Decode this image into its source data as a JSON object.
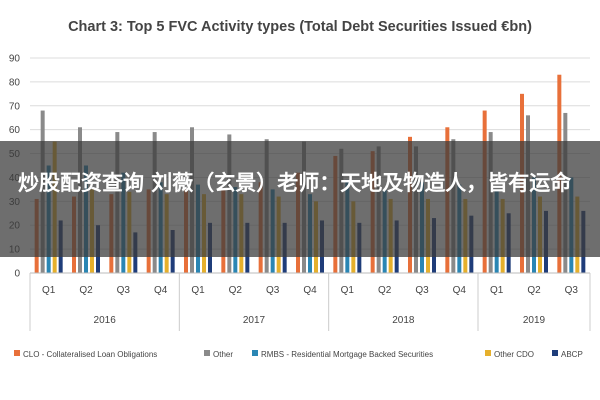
{
  "overlay": {
    "text": "炒股配资查询 刘薇（玄景）老师：天地及物造人，皆有运命"
  },
  "colors": {
    "clo": "#e8703a",
    "other": "#8a8a8a",
    "rmbs": "#2a86b4",
    "other_cdo": "#e6b02c",
    "abcp": "#1f3d7a",
    "grid": "#dcdcdc",
    "text": "#444444"
  },
  "chart_data": {
    "type": "bar",
    "title": "Chart 3: Top 5 FVC Activity types (Total Debt Securities Issued €bn)",
    "xlabel": "",
    "ylabel": "",
    "ylim": [
      0,
      90
    ],
    "yticks": [
      0,
      10,
      20,
      30,
      40,
      50,
      60,
      70,
      80,
      90
    ],
    "grid": true,
    "legend_position": "bottom",
    "categories": [
      "Q1",
      "Q2",
      "Q3",
      "Q4",
      "Q1",
      "Q2",
      "Q3",
      "Q4",
      "Q1",
      "Q2",
      "Q3",
      "Q4",
      "Q1",
      "Q2",
      "Q3"
    ],
    "groups": [
      {
        "label": "2016",
        "count": 4
      },
      {
        "label": "2017",
        "count": 4
      },
      {
        "label": "2018",
        "count": 4
      },
      {
        "label": "2019",
        "count": 3
      }
    ],
    "series": [
      {
        "name": "CLO - Collateralised Loan Obligations",
        "color_key": "clo",
        "values": [
          31,
          32,
          33,
          35,
          35,
          35,
          38,
          42,
          49,
          51,
          57,
          61,
          68,
          75,
          83
        ]
      },
      {
        "name": "Other",
        "color_key": "other",
        "values": [
          68,
          61,
          59,
          59,
          61,
          58,
          56,
          55,
          52,
          53,
          53,
          56,
          59,
          66,
          67
        ]
      },
      {
        "name": "RMBS - Residential Mortgage Backed Securities",
        "color_key": "rmbs",
        "values": [
          45,
          45,
          42,
          38,
          37,
          36,
          35,
          33,
          39,
          35,
          38,
          37,
          35,
          40,
          40
        ]
      },
      {
        "name": "Other CDO",
        "color_key": "other_cdo",
        "values": [
          55,
          35,
          34,
          33,
          33,
          33,
          32,
          30,
          30,
          31,
          31,
          31,
          31,
          32,
          32
        ]
      },
      {
        "name": "ABCP",
        "color_key": "abcp",
        "values": [
          22,
          20,
          17,
          18,
          21,
          21,
          21,
          22,
          21,
          22,
          23,
          24,
          25,
          26,
          26
        ]
      }
    ]
  }
}
